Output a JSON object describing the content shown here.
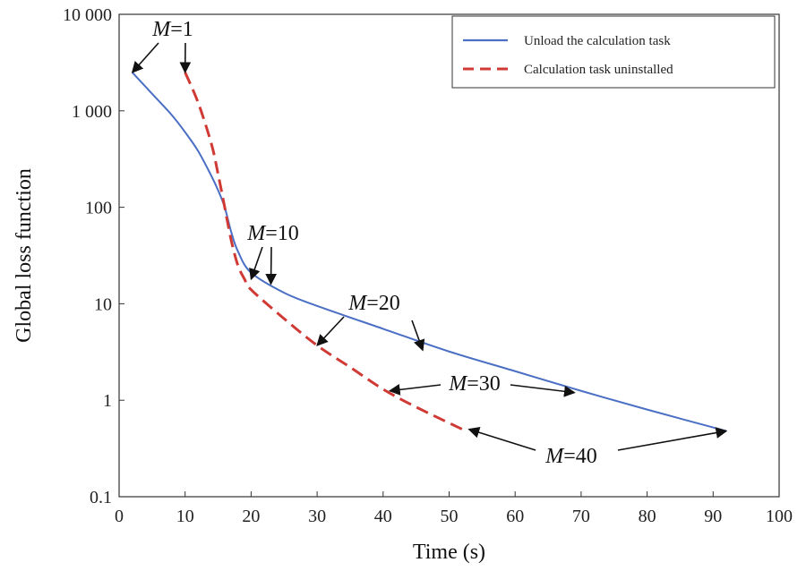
{
  "chart_data": {
    "type": "line",
    "title": "",
    "xlabel": "Time (s)",
    "ylabel": "Global loss function",
    "x_scale": "linear",
    "y_scale": "log",
    "xlim": [
      0,
      100
    ],
    "ylim": [
      0.1,
      10000
    ],
    "x_ticks": [
      0,
      10,
      20,
      30,
      40,
      50,
      60,
      70,
      80,
      90,
      100
    ],
    "x_tick_labels": [
      "0",
      "10",
      "20",
      "30",
      "40",
      "50",
      "60",
      "70",
      "80",
      "90",
      "100"
    ],
    "y_ticks": [
      0.1,
      1,
      10,
      100,
      1000,
      10000
    ],
    "y_tick_labels": [
      "0.1",
      "1",
      "10",
      "100",
      "1 000",
      "10 000"
    ],
    "grid": false,
    "legend_position": "top-right",
    "series": [
      {
        "name": "Unload the calculation task",
        "color": "#4a6fc4",
        "style": "solid",
        "x": [
          2,
          5,
          8,
          10,
          12,
          14,
          15,
          16,
          17,
          18,
          20,
          25,
          30,
          40,
          50,
          60,
          70,
          80,
          92
        ],
        "y": [
          2500,
          1500,
          900,
          600,
          380,
          210,
          150,
          100,
          55,
          35,
          21,
          13,
          9.5,
          5.5,
          3.2,
          2,
          1.25,
          0.8,
          0.48
        ]
      },
      {
        "name": "Calculation task uninstalled",
        "color": "#d03a34",
        "style": "dashed",
        "x": [
          10,
          12,
          14,
          15,
          16,
          17,
          18,
          19,
          20,
          25,
          30,
          35,
          40,
          45,
          52
        ],
        "y": [
          2500,
          1200,
          450,
          220,
          100,
          45,
          25,
          18,
          14,
          7,
          3.7,
          2.2,
          1.3,
          0.85,
          0.5
        ]
      }
    ],
    "annotations": [
      {
        "text_italic": "M",
        "text_rest": "=1",
        "targets": [
          [
            2,
            2500
          ],
          [
            10,
            2500
          ]
        ]
      },
      {
        "text_italic": "M",
        "text_rest": "=10",
        "targets": [
          [
            20,
            18
          ],
          [
            23,
            16
          ]
        ]
      },
      {
        "text_italic": "M",
        "text_rest": "=20",
        "targets": [
          [
            30,
            3.7
          ],
          [
            46,
            3.3
          ]
        ]
      },
      {
        "text_italic": "M",
        "text_rest": "=30",
        "targets": [
          [
            41,
            1.25
          ],
          [
            69,
            1.2
          ]
        ]
      },
      {
        "text_italic": "M",
        "text_rest": "=40",
        "targets": [
          [
            53,
            0.5
          ],
          [
            92,
            0.48
          ]
        ]
      }
    ]
  }
}
